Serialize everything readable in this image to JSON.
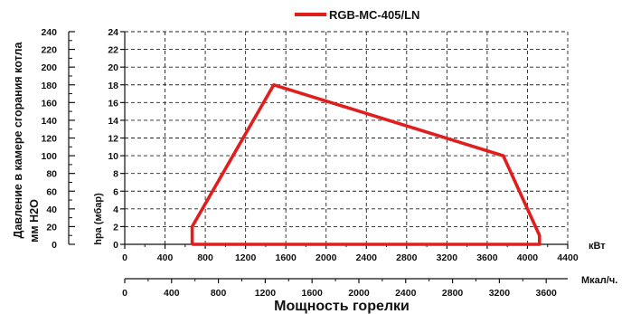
{
  "chart_data": {
    "type": "line",
    "series": [
      {
        "name": "RGB-MC-405/LN",
        "color": "#e01e1e",
        "x": [
          670,
          670,
          1480,
          3760,
          4120,
          4120,
          670
        ],
        "y": [
          0,
          2,
          18,
          10,
          1,
          0,
          0
        ]
      }
    ],
    "left_axis": {
      "label_line1": "Давление в камере сгорания котла",
      "label_line2": "мм H2O",
      "ticks": [
        "0",
        "20",
        "40",
        "60",
        "80",
        "100",
        "120",
        "140",
        "160",
        "180",
        "200",
        "220",
        "240"
      ],
      "range": [
        0,
        240
      ]
    },
    "right_axis": {
      "label": "hpa (мбар)",
      "ticks": [
        "0",
        "2",
        "4",
        "6",
        "8",
        "10",
        "12",
        "14",
        "16",
        "18",
        "20",
        "22",
        "24"
      ],
      "range": [
        0,
        24
      ]
    },
    "x_axis_kw": {
      "unit": "кВт",
      "ticks": [
        "0",
        "400",
        "800",
        "1200",
        "1600",
        "2000",
        "2400",
        "2800",
        "3200",
        "3600",
        "4000",
        "4400"
      ],
      "range": [
        0,
        4400
      ]
    },
    "x_axis_mcal": {
      "unit": "Мкал/ч.",
      "ticks": [
        "0",
        "400",
        "800",
        "1200",
        "1600",
        "2000",
        "2400",
        "2800",
        "3200",
        "3600"
      ],
      "range": [
        0,
        3784
      ]
    },
    "xlabel": "Мощность горелки",
    "grid": true,
    "legend_position": "top-center"
  }
}
